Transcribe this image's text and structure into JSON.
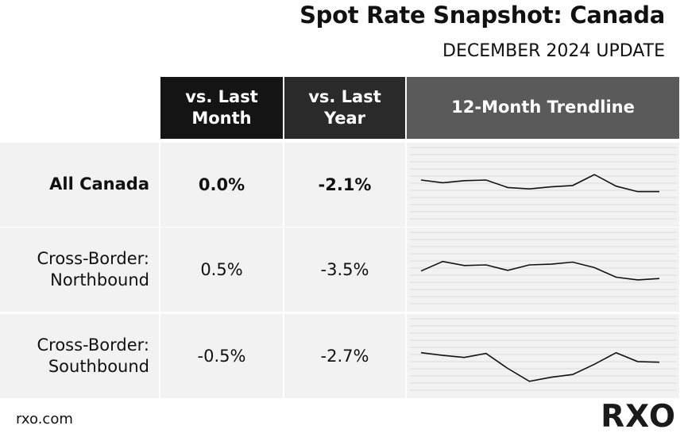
{
  "title": "Spot Rate Snapshot: Canada",
  "subtitle": "DECEMBER 2024 UPDATE",
  "headers": {
    "mom": "vs. Last\nMonth",
    "yoy": "vs. Last\nYear",
    "trend": "12-Month Trendline"
  },
  "footer": {
    "url": "rxo.com",
    "logo": "RXO"
  },
  "chart_data": {
    "type": "table",
    "columns": [
      "vs. Last Month",
      "vs. Last Year",
      "12-Month Trendline"
    ],
    "rows": [
      {
        "label": "All Canada",
        "mom": "0.0%",
        "yoy": "-2.1%",
        "trend": [
          57,
          53,
          56,
          57,
          46,
          44,
          47,
          49,
          65,
          48,
          40,
          40
        ]
      },
      {
        "label": "Cross-Border:\nNorthbound",
        "mom": "0.5%",
        "yoy": "-3.5%",
        "trend": [
          48,
          62,
          56,
          57,
          49,
          57,
          58,
          61,
          53,
          39,
          35,
          37
        ]
      },
      {
        "label": "Cross-Border:\nSouthbound",
        "mom": "-0.5%",
        "yoy": "-2.7%",
        "trend": [
          55,
          51,
          48,
          54,
          32,
          13,
          19,
          23,
          38,
          55,
          42,
          41
        ]
      }
    ]
  }
}
